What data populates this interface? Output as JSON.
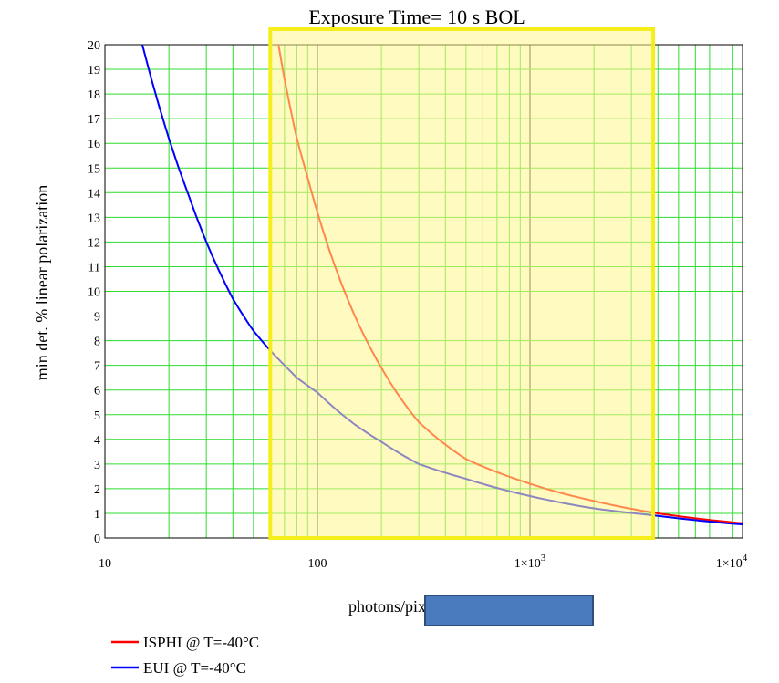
{
  "chart_data": {
    "type": "line",
    "title": "Exposure Time= 10 s   BOL",
    "xlabel": "photons/pixel/s",
    "ylabel": "min det. % linear polarization",
    "x_scale": "log",
    "xlim": [
      10,
      10000
    ],
    "ylim": [
      0,
      20
    ],
    "x_ticks": [
      {
        "value": 10,
        "label": "10",
        "exp": ""
      },
      {
        "value": 100,
        "label": "100",
        "exp": ""
      },
      {
        "value": 1000,
        "label": "1×10",
        "exp": "3"
      },
      {
        "value": 10000,
        "label": "1×10",
        "exp": "4"
      }
    ],
    "y_ticks": [
      "0",
      "1",
      "2",
      "3",
      "4",
      "5",
      "6",
      "7",
      "8",
      "9",
      "10",
      "11",
      "12",
      "13",
      "14",
      "15",
      "16",
      "17",
      "18",
      "19",
      "20"
    ],
    "grid": true,
    "highlight_region": {
      "x_from": 60,
      "x_to": 3800,
      "fill": "#fff58a",
      "stroke": "#f5ee1a"
    },
    "series": [
      {
        "name": "ISPHI @ T=-40°C",
        "color": "#ff0000",
        "x": [
          60,
          65,
          70,
          80,
          90,
          100,
          120,
          150,
          200,
          300,
          500,
          1000,
          2000,
          4000,
          6000,
          10000
        ],
        "y": [
          22,
          20.2,
          18.6,
          16.2,
          14.6,
          13.2,
          11.1,
          9.0,
          6.9,
          4.7,
          3.2,
          2.2,
          1.5,
          1.0,
          0.8,
          0.6
        ]
      },
      {
        "name": "EUI @ T=-40°C",
        "color": "#0000ff",
        "x": [
          14,
          15,
          20,
          25,
          30,
          40,
          50,
          60,
          70,
          80,
          100,
          150,
          200,
          300,
          500,
          1000,
          2000,
          4000,
          10000
        ],
        "y": [
          22,
          20,
          16.2,
          13.8,
          12.0,
          9.7,
          8.4,
          7.6,
          7.0,
          6.5,
          5.9,
          4.6,
          3.9,
          3.0,
          2.4,
          1.7,
          1.2,
          0.9,
          0.55
        ]
      }
    ]
  },
  "legend": {
    "items": [
      {
        "label": "ISPHI @ T=-40°C",
        "color": "#ff0000"
      },
      {
        "label": "EUI @ T=-40°C",
        "color": "#0000ff"
      }
    ]
  },
  "annotation_box": {
    "fill": "#4a7bbf",
    "stroke": "#2e4f7a"
  }
}
